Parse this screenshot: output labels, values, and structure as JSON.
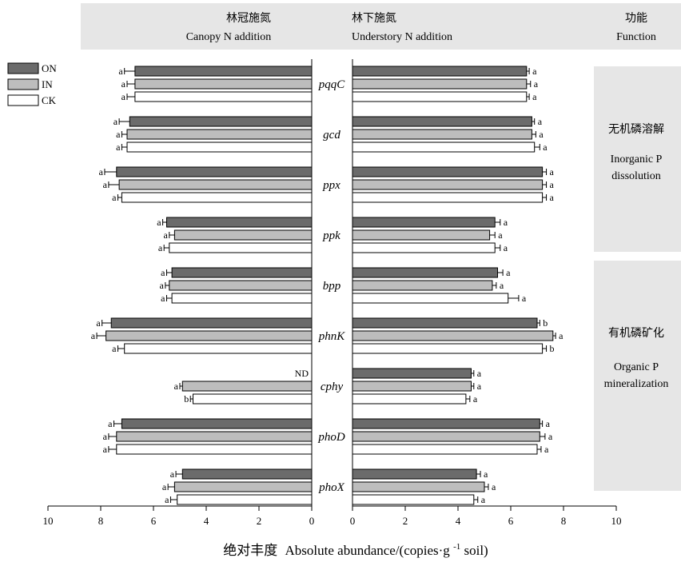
{
  "header": {
    "canopy_cn": "林冠施氮",
    "canopy_en": "Canopy N addition",
    "understory_cn": "林下施氮",
    "understory_en": "Understory N addition",
    "function_cn": "功能",
    "function_en": "Function"
  },
  "legend": [
    {
      "label": "ON",
      "color": "#6b6b6b"
    },
    {
      "label": "IN",
      "color": "#bdbdbd"
    },
    {
      "label": "CK",
      "color": "#ffffff"
    }
  ],
  "functions": [
    {
      "cn": "无机磷溶解",
      "en_line1": "Inorganic P",
      "en_line2": "dissolution"
    },
    {
      "cn": "有机磷矿化",
      "en_line1": "Organic P",
      "en_line2": "mineralization"
    }
  ],
  "xlabel": {
    "cn": "绝对丰度",
    "en": "Absolute abundance/(copies·g",
    "sup": "-1",
    "unit_tail": " soil)"
  },
  "colors": {
    "ON": "#6b6b6b",
    "IN": "#bdbdbd",
    "CK": "#ffffff",
    "panel": "#e6e6e6"
  },
  "chart_data": [
    {
      "type": "bar",
      "orientation": "horizontal",
      "panel": "Canopy N addition",
      "direction": "reversed",
      "xlim": [
        10,
        0
      ],
      "xticks": [
        "10",
        "8",
        "6",
        "4",
        "2",
        "0"
      ],
      "categories": [
        "pqqC",
        "gcd",
        "ppx",
        "ppk",
        "bpp",
        "phnK",
        "cphy",
        "phoD",
        "phoX"
      ],
      "series": [
        {
          "name": "ON",
          "values": [
            6.7,
            6.9,
            7.4,
            5.5,
            5.3,
            7.6,
            null,
            7.2,
            4.9
          ],
          "errors": [
            0.4,
            0.4,
            0.45,
            0.15,
            0.2,
            0.35,
            null,
            0.3,
            0.25
          ],
          "labels": [
            "a",
            "a",
            "a",
            "a",
            "a",
            "a",
            "ND",
            "a",
            "a"
          ]
        },
        {
          "name": "IN",
          "values": [
            6.7,
            7.0,
            7.3,
            5.2,
            5.4,
            7.8,
            4.9,
            7.4,
            5.2
          ],
          "errors": [
            0.3,
            0.2,
            0.4,
            0.2,
            0.15,
            0.35,
            0.1,
            0.3,
            0.25
          ],
          "labels": [
            "a",
            "a",
            "a",
            "a",
            "a",
            "a",
            "a",
            "a",
            "a"
          ]
        },
        {
          "name": "CK",
          "values": [
            6.7,
            7.0,
            7.2,
            5.4,
            5.3,
            7.1,
            4.5,
            7.4,
            5.1
          ],
          "errors": [
            0.3,
            0.2,
            0.15,
            0.2,
            0.2,
            0.25,
            0.1,
            0.3,
            0.25
          ],
          "labels": [
            "a",
            "a",
            "a",
            "a",
            "a",
            "a",
            "b",
            "a",
            "a"
          ]
        }
      ]
    },
    {
      "type": "bar",
      "orientation": "horizontal",
      "panel": "Understory N addition",
      "xlim": [
        0,
        10
      ],
      "xticks": [
        "0",
        "2",
        "4",
        "6",
        "8",
        "10"
      ],
      "categories": [
        "pqqC",
        "gcd",
        "ppx",
        "ppk",
        "bpp",
        "phnK",
        "cphy",
        "phoD",
        "phoX"
      ],
      "series": [
        {
          "name": "ON",
          "values": [
            6.6,
            6.8,
            7.2,
            5.4,
            5.5,
            7.0,
            4.5,
            7.1,
            4.7
          ],
          "errors": [
            0.1,
            0.1,
            0.15,
            0.2,
            0.2,
            0.1,
            0.1,
            0.1,
            0.15
          ],
          "labels": [
            "a",
            "a",
            "a",
            "a",
            "a",
            "b",
            "a",
            "a",
            "a"
          ]
        },
        {
          "name": "IN",
          "values": [
            6.6,
            6.8,
            7.2,
            5.2,
            5.3,
            7.6,
            4.5,
            7.1,
            5.0
          ],
          "errors": [
            0.15,
            0.15,
            0.15,
            0.2,
            0.15,
            0.1,
            0.1,
            0.2,
            0.15
          ],
          "labels": [
            "a",
            "a",
            "a",
            "a",
            "a",
            "a",
            "a",
            "a",
            "a"
          ]
        },
        {
          "name": "CK",
          "values": [
            6.6,
            6.9,
            7.2,
            5.4,
            5.9,
            7.2,
            4.3,
            7.0,
            4.6
          ],
          "errors": [
            0.1,
            0.2,
            0.15,
            0.2,
            0.4,
            0.15,
            0.15,
            0.15,
            0.15
          ],
          "labels": [
            "a",
            "a",
            "a",
            "a",
            "a",
            "b",
            "a",
            "a",
            "a"
          ]
        }
      ]
    }
  ]
}
